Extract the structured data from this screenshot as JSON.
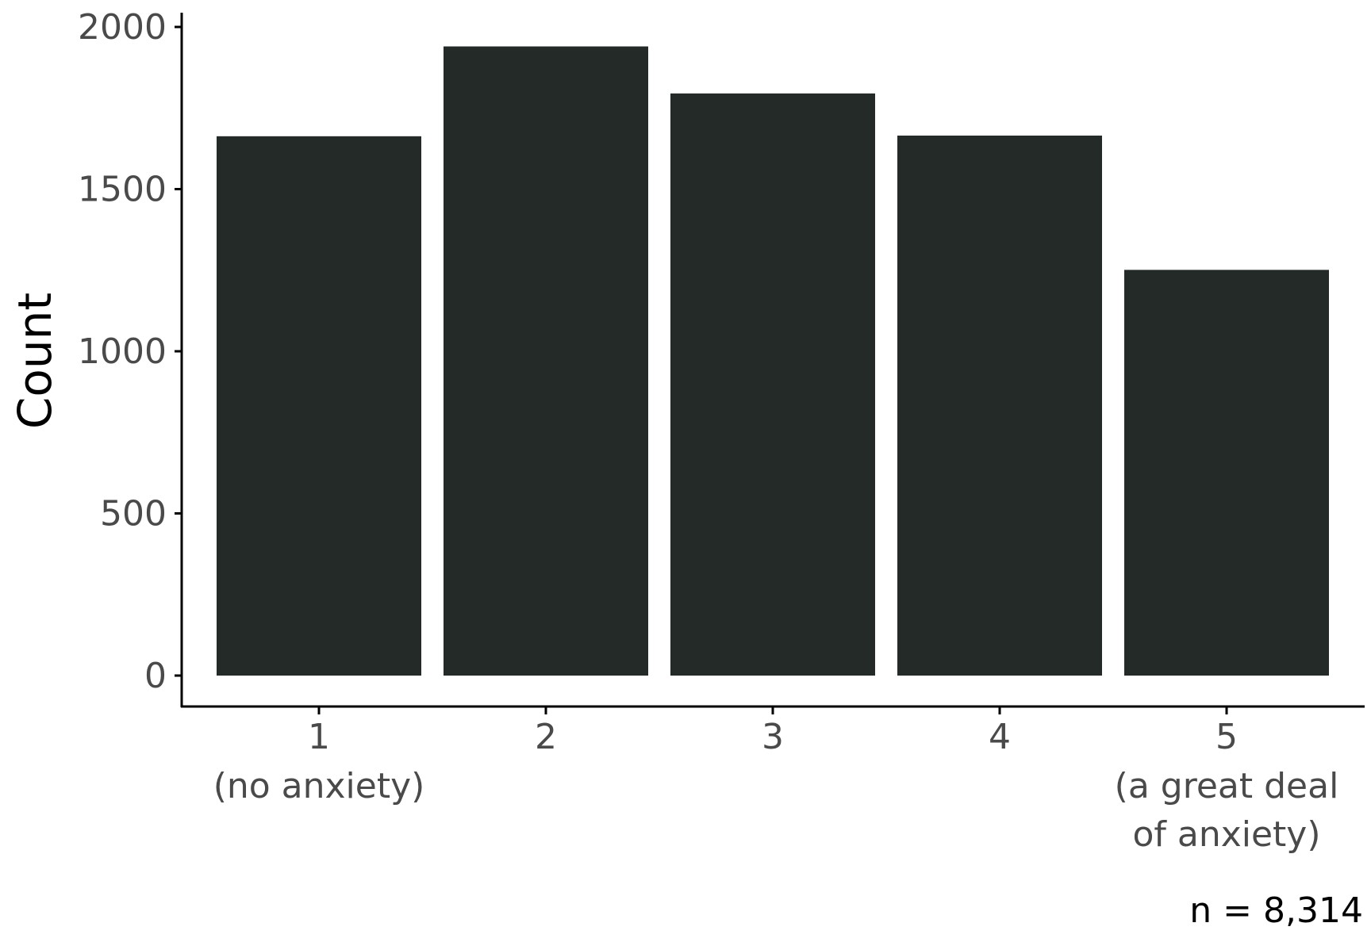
{
  "chart_data": {
    "type": "bar",
    "categories": [
      "1",
      "2",
      "3",
      "4",
      "5"
    ],
    "category_sublabels": [
      [
        "(no anxiety)"
      ],
      [],
      [],
      [],
      [
        "(a great deal",
        "of anxiety)"
      ]
    ],
    "values": [
      1663,
      1940,
      1795,
      1665,
      1251
    ],
    "title": "",
    "xlabel": "",
    "ylabel": "Count",
    "ylim": [
      0,
      2000
    ],
    "yticks": [
      "0",
      "500",
      "1000",
      "1500",
      "2000"
    ],
    "caption": "n = 8,314",
    "grid": false,
    "legend": "none",
    "bar_color": "#232a28"
  }
}
